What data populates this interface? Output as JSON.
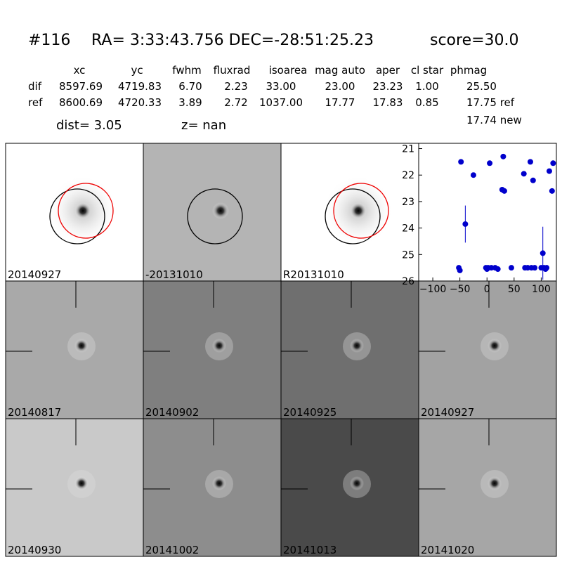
{
  "header": {
    "id": "#116",
    "coords": "RA= 3:33:43.756 DEC=-28:51:25.23",
    "score": "score=30.0"
  },
  "table": {
    "columns": [
      "xc",
      "yc",
      "fwhm",
      "fluxrad",
      "isoarea",
      "mag auto",
      "aper",
      "cl star",
      "phmag"
    ],
    "rows": [
      [
        "dif",
        "8597.69",
        "4719.83",
        "6.70",
        "2.23",
        "33.00",
        "23.00",
        "23.23",
        "1.00",
        "25.50"
      ],
      [
        "ref",
        "8600.69",
        "4720.33",
        "3.89",
        "2.72",
        "1037.00",
        "17.77",
        "17.83",
        "0.85",
        "17.75 ref"
      ]
    ],
    "extra": "17.74 new",
    "dist": "dist=  3.05",
    "z": "z=   nan"
  },
  "panels": [
    {
      "label": "20140927"
    },
    {
      "label": "-20131010"
    },
    {
      "label": "R20131010"
    },
    {
      "label": "20140817"
    },
    {
      "label": "20140902"
    },
    {
      "label": "20140925"
    },
    {
      "label": "20140927",
      "highlight": true
    },
    {
      "label": "20140930"
    },
    {
      "label": "20141002"
    },
    {
      "label": "20141013"
    },
    {
      "label": "20141020"
    }
  ],
  "chart_data": {
    "type": "scatter",
    "color": "#0000cc",
    "x": [
      -52,
      -50,
      -48,
      -40,
      -25,
      -2,
      0,
      2,
      5,
      8,
      15,
      20,
      28,
      30,
      32,
      45,
      68,
      70,
      75,
      80,
      82,
      85,
      88,
      100,
      103,
      105,
      108,
      110,
      115,
      120,
      122
    ],
    "values": [
      25.5,
      25.6,
      21.5,
      23.85,
      22.0,
      25.5,
      25.55,
      25.5,
      21.55,
      25.5,
      25.5,
      25.55,
      22.55,
      21.3,
      22.6,
      25.5,
      21.95,
      25.5,
      25.5,
      21.5,
      25.5,
      22.2,
      25.5,
      25.5,
      24.95,
      25.5,
      25.55,
      25.5,
      21.85,
      22.6,
      21.55
    ],
    "errors": [
      0.05,
      0.05,
      0.05,
      0.7,
      0.05,
      0.05,
      0.05,
      0.05,
      0.05,
      0.05,
      0.05,
      0.05,
      0.1,
      0.05,
      0.1,
      0.05,
      0.08,
      0.05,
      0.05,
      0.05,
      0.05,
      0.08,
      0.05,
      0.05,
      1.0,
      0.05,
      0.05,
      0.05,
      0.08,
      0.1,
      0.05
    ],
    "xlim": [
      -126,
      128
    ],
    "ylim": [
      26,
      20.8
    ],
    "xticks": [
      {
        "value": -100,
        "label": "−100"
      },
      {
        "value": -50,
        "label": "−50"
      },
      0,
      50,
      100
    ],
    "yticks": [
      21,
      22,
      23,
      24,
      25,
      26
    ]
  }
}
